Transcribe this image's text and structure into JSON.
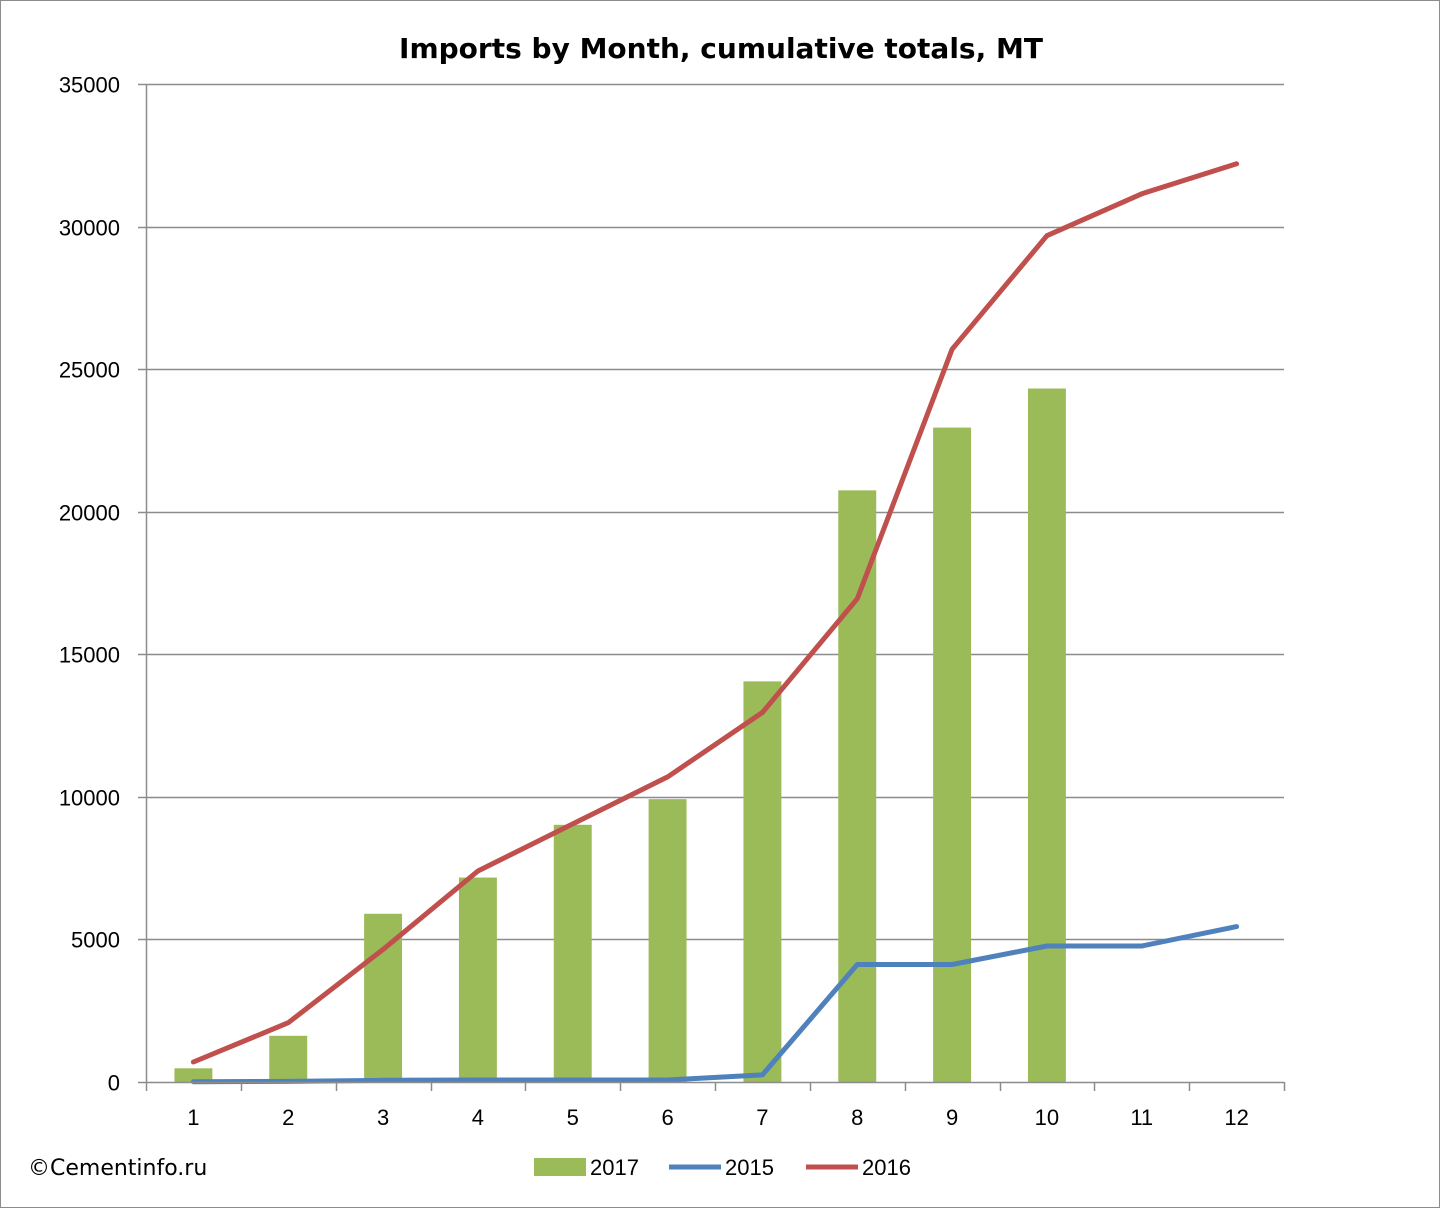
{
  "chart_data": {
    "type": "bar+line",
    "title": "Imports by Month, cumulative totals, MT",
    "categories": [
      "1",
      "2",
      "3",
      "4",
      "5",
      "6",
      "7",
      "8",
      "9",
      "10",
      "11",
      "12"
    ],
    "ylim": [
      0,
      35000
    ],
    "yticks": [
      0,
      5000,
      10000,
      15000,
      20000,
      25000,
      30000,
      35000
    ],
    "ytick_labels": [
      "0",
      "5000",
      "10000",
      "15000",
      "20000",
      "25000",
      "30000",
      "35000"
    ],
    "grid": true,
    "legend_position": "bottom",
    "series": [
      {
        "name": "2017",
        "kind": "bar",
        "color": "#9bbb59",
        "values": [
          480,
          1620,
          5900,
          7170,
          9020,
          9920,
          14050,
          20750,
          22950,
          24320,
          null,
          null
        ]
      },
      {
        "name": "2015",
        "kind": "line",
        "color": "#4f81bd",
        "values": [
          10,
          20,
          60,
          70,
          70,
          70,
          250,
          4120,
          4120,
          4770,
          4770,
          5450
        ]
      },
      {
        "name": "2016",
        "kind": "line",
        "color": "#c0504d",
        "values": [
          700,
          2080,
          4650,
          7400,
          9050,
          10700,
          12960,
          16950,
          25700,
          29680,
          31150,
          32200
        ]
      }
    ]
  },
  "credit": "©Cementinfo.ru"
}
